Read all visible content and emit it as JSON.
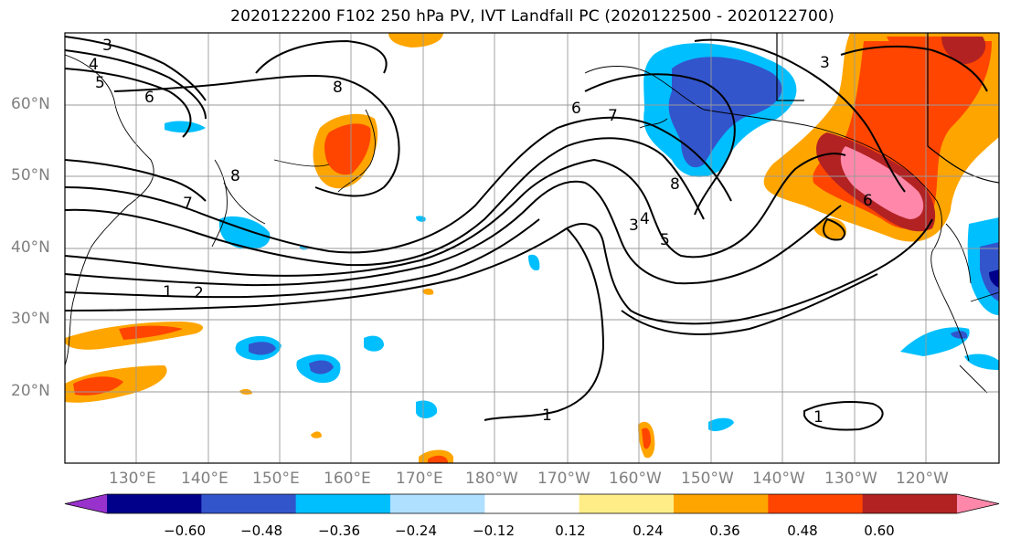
{
  "title": "2020122200 F102 250 hPa PV, IVT Landfall PC (2020122500 - 2020122700)",
  "lat_labels": [
    "60°N",
    "50°N",
    "40°N",
    "30°N",
    "20°N"
  ],
  "lon_labels": [
    "130°E",
    "140°E",
    "150°E",
    "160°E",
    "170°E",
    "180°W",
    "170°W",
    "160°W",
    "150°W",
    "140°W",
    "130°W",
    "120°W"
  ],
  "contour_labels": [
    "3",
    "4",
    "5",
    "6",
    "8",
    "7",
    "8",
    "1",
    "2",
    "3",
    "4",
    "5",
    "6",
    "7",
    "8",
    "1",
    "1",
    "3",
    "6"
  ],
  "colorbar": {
    "colors": [
      "#9932cc",
      "#00008b",
      "#3355cc",
      "#00bfff",
      "#b0e0ff",
      "#ffffff",
      "#ffee88",
      "#ffa500",
      "#ff4500",
      "#b22222",
      "#ff88aa"
    ],
    "tick_labels": [
      "−0.60",
      "−0.48",
      "−0.36",
      "−0.24",
      "−0.12",
      "0.12",
      "0.24",
      "0.36",
      "0.48",
      "0.60"
    ]
  }
}
